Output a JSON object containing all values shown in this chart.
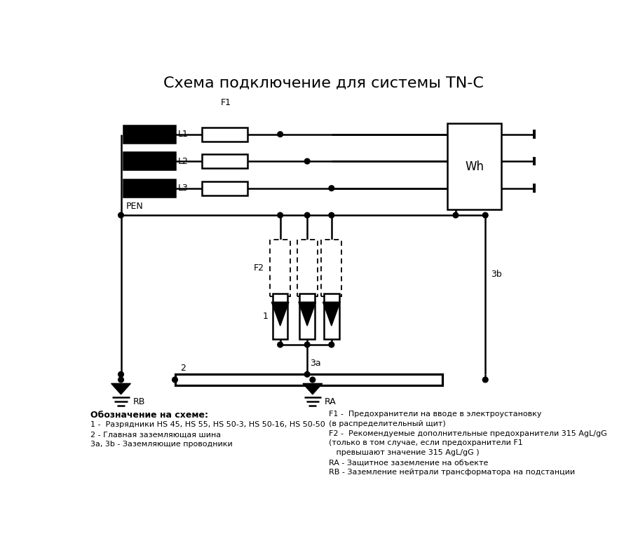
{
  "title": "Схема подключение для системы TN-C",
  "title_fontsize": 16,
  "legend_title": "Обозначение на схеме:",
  "legend_items_left": [
    "1 -  Разрядники HS 45, HS 55, HS 50-3, HS 50-16, HS 50-50",
    "2 - Главная заземляющая шина",
    "3а, 3b - Заземляющие проводники"
  ],
  "legend_right_line1": "F1 -  Предохранители на вводе в электроустановку",
  "legend_right_line2": "(в распределительный щит)",
  "legend_right_line3": "F2 -  Рекомендуемые дополнительные предохранители 315 AgL/gG",
  "legend_right_line4": "(только в том случае, если предохранители F1",
  "legend_right_line5": "   превышают значение 315 AgL/gG )",
  "legend_right_line6": "RA - Защитное заземление на объекте",
  "legend_right_line7": "RB - Заземление нейтрали трансформатора на подстанции",
  "bg_color": "#ffffff",
  "line_color": "#000000"
}
